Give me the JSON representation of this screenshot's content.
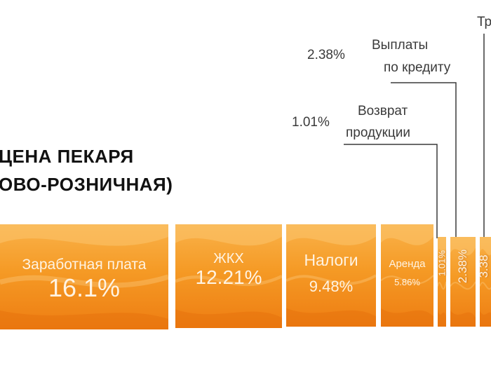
{
  "chart_data": {
    "type": "bar",
    "title_lines": [
      "ЦЕНА ПЕКАРЯ",
      "ОВО-РОЗНИЧНАЯ)"
    ],
    "segments": [
      {
        "label": "Заработная плата",
        "value": 16.1,
        "value_text": "16.1%"
      },
      {
        "label": "ЖКХ",
        "value": 12.21,
        "value_text": "12.21%"
      },
      {
        "label": "Налоги",
        "value": 9.48,
        "value_text": "9.48%"
      },
      {
        "label": "Аренда",
        "value": 5.86,
        "value_text": "5.86%"
      },
      {
        "label": "Возврат продукции",
        "value": 1.01,
        "value_text": "1.01%"
      },
      {
        "label": "Выплаты по кредиту",
        "value": 2.38,
        "value_text": "2.38%"
      },
      {
        "label": "Тр",
        "value": null,
        "value_text": "3.38"
      }
    ],
    "annotations": [
      {
        "value_text": "2.38%",
        "lines": [
          "Выплаты",
          "по кредиту"
        ]
      },
      {
        "value_text": "1.01%",
        "lines": [
          "Возврат",
          "продукции"
        ]
      },
      {
        "value_text": "",
        "lines": [
          "Тр"
        ]
      }
    ]
  },
  "colors": {
    "orange_light": "#f9b24a",
    "orange_mid": "#f59a25",
    "orange_dark": "#ee7d12",
    "label_text": "#fff3e2",
    "title_text": "#111111",
    "annotation_text": "#3a3a3a"
  }
}
